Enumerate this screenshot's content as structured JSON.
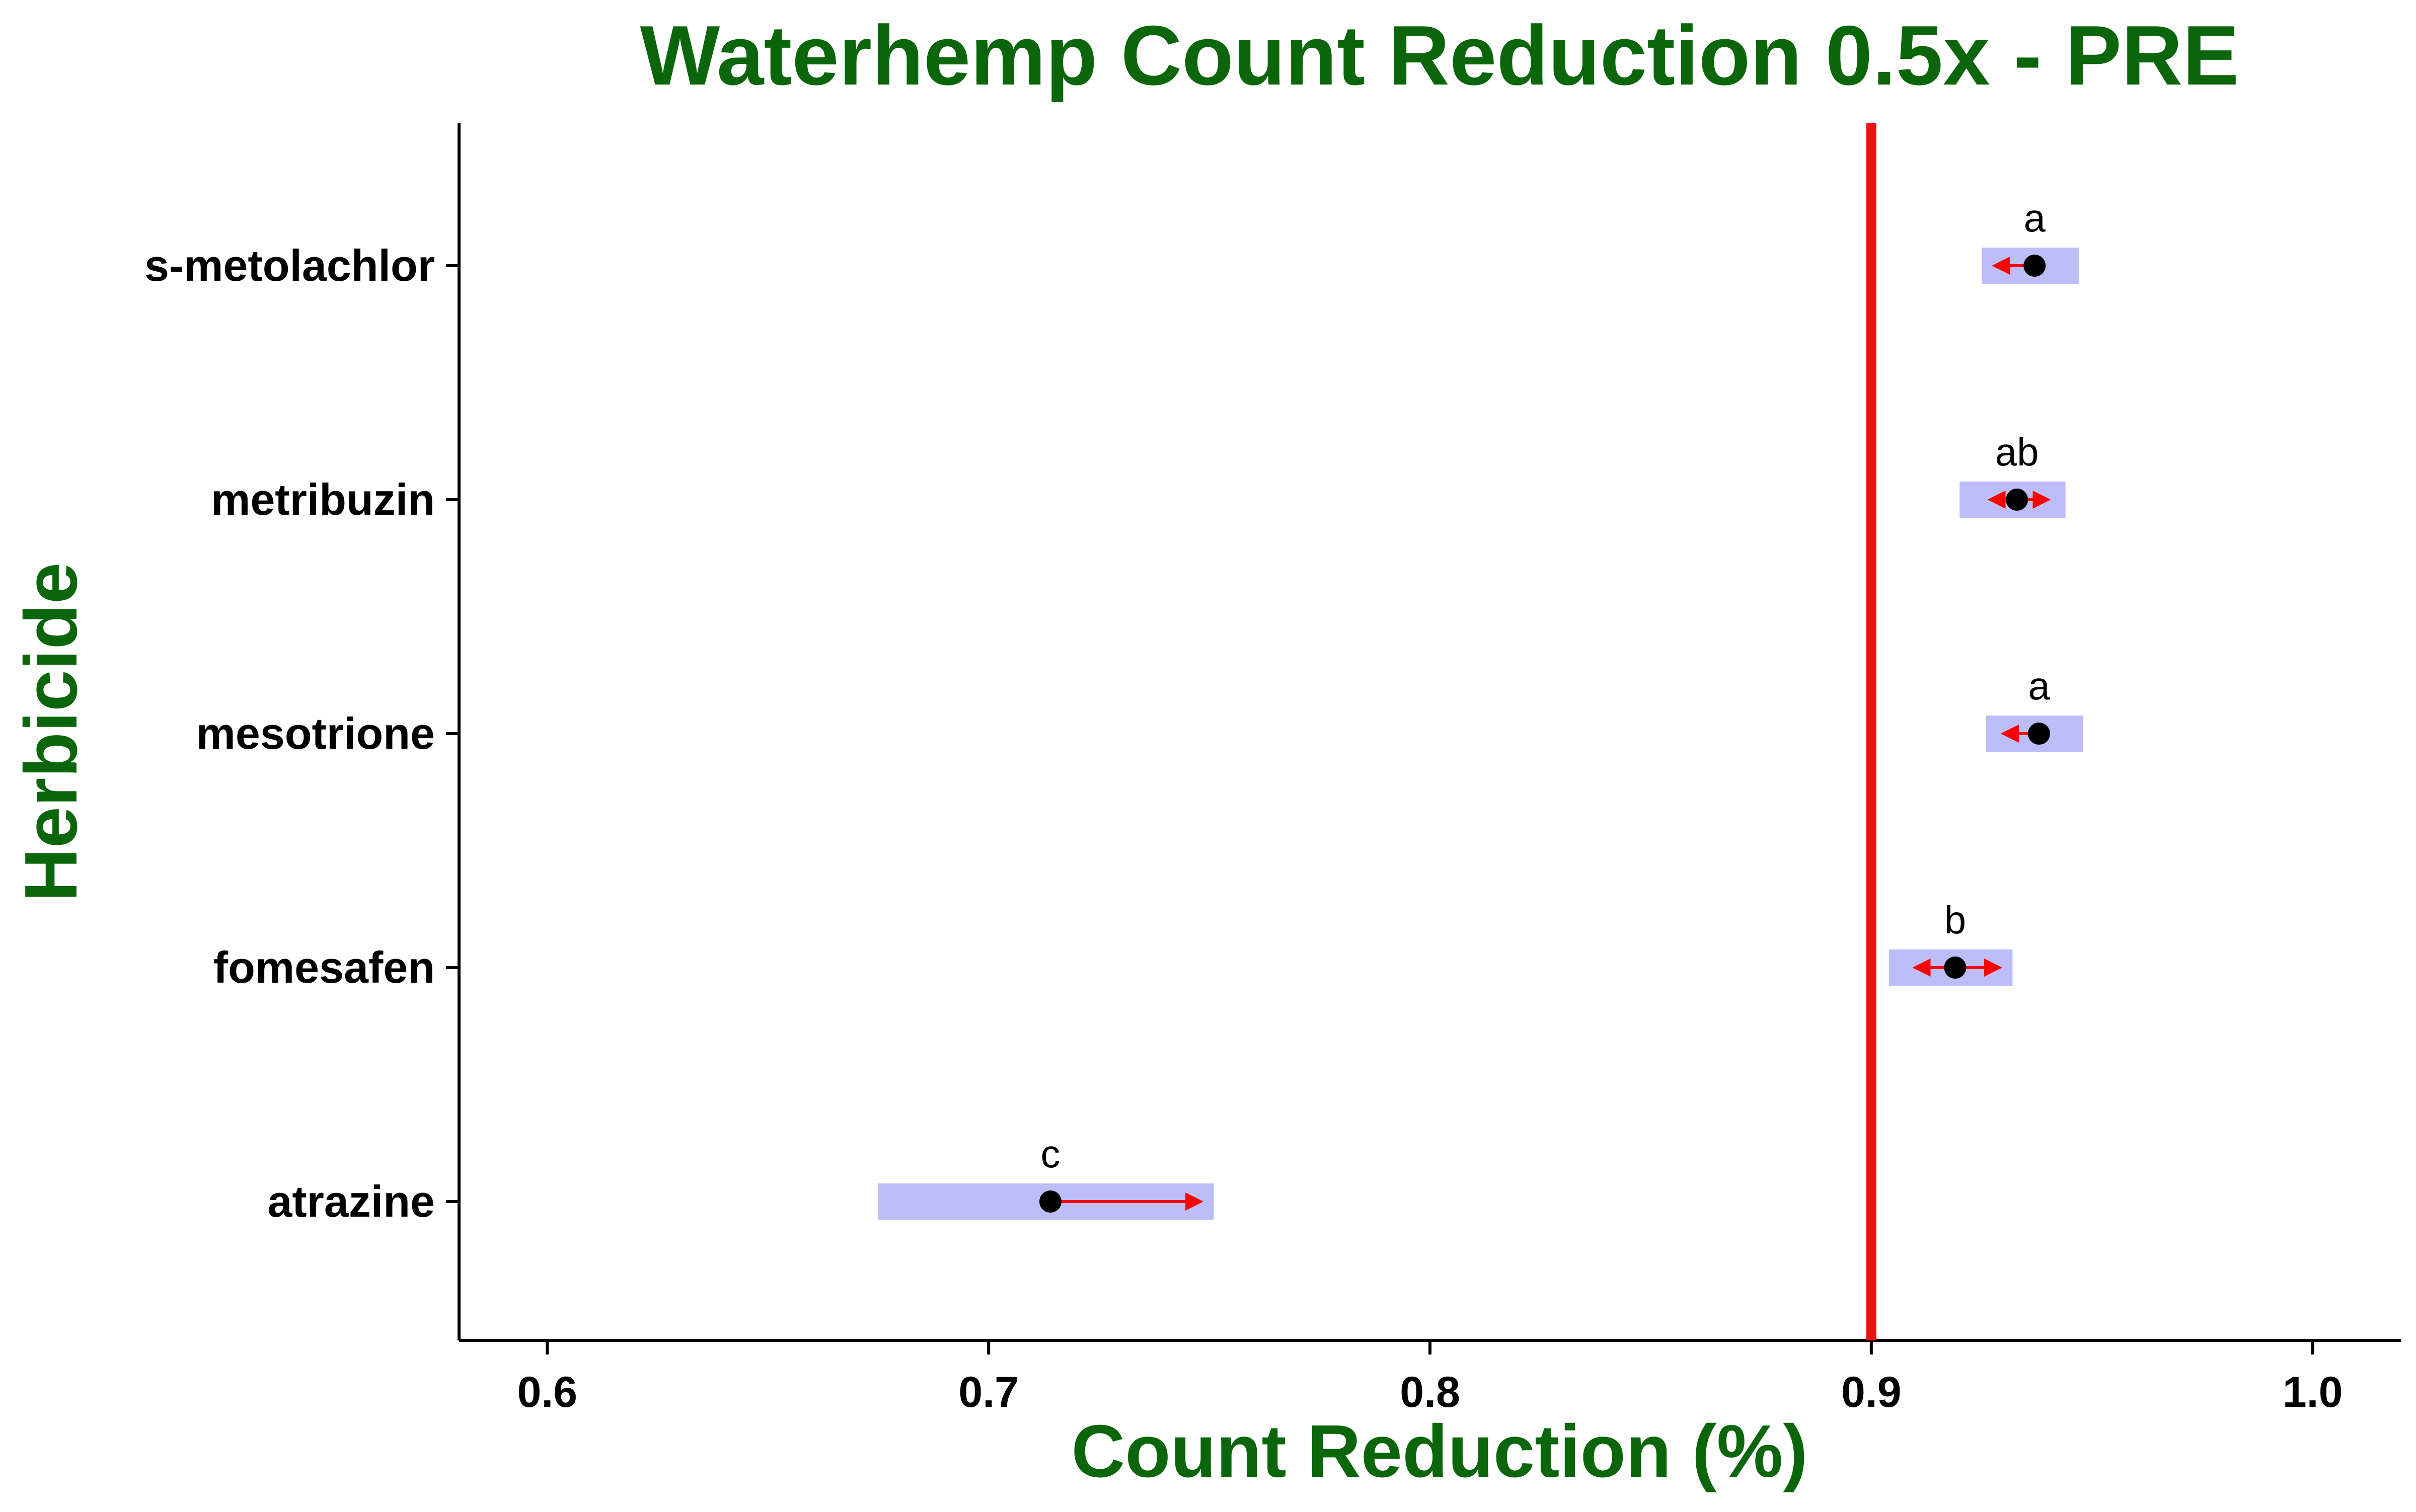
{
  "colors": {
    "title": "#0b660b",
    "ci_band": "#bdbdfa",
    "arrow": "#ff0000",
    "point": "#000000",
    "reference_line": "#ee1111",
    "axis": "#000000"
  },
  "chart_data": {
    "type": "dot-interval",
    "title": "Waterhemp Count Reduction 0.5x - PRE",
    "xlabel": "Count Reduction (%)",
    "ylabel": "Herbicide",
    "xlim": [
      0.58,
      1.02
    ],
    "x_ticks": [
      0.6,
      0.7,
      0.8,
      0.9,
      1.0
    ],
    "x_tick_labels": [
      "0.6",
      "0.7",
      "0.8",
      "0.9",
      "1.0"
    ],
    "reference_line": 0.9,
    "grid": false,
    "legend": "none",
    "categories": [
      "s-metolachlor",
      "metribuzin",
      "mesotrione",
      "fomesafen",
      "atrazine"
    ],
    "estimates": [
      0.937,
      0.933,
      0.938,
      0.919,
      0.714
    ],
    "ci_lower": [
      0.925,
      0.92,
      0.926,
      0.904,
      0.675
    ],
    "ci_upper": [
      0.947,
      0.944,
      0.948,
      0.932,
      0.751
    ],
    "arrow_lower": [
      0.928,
      0.927,
      0.93,
      0.91,
      null
    ],
    "arrow_upper": [
      null,
      0.94,
      null,
      0.929,
      0.748
    ],
    "group_letters": [
      "a",
      "ab",
      "a",
      "b",
      "c"
    ]
  }
}
